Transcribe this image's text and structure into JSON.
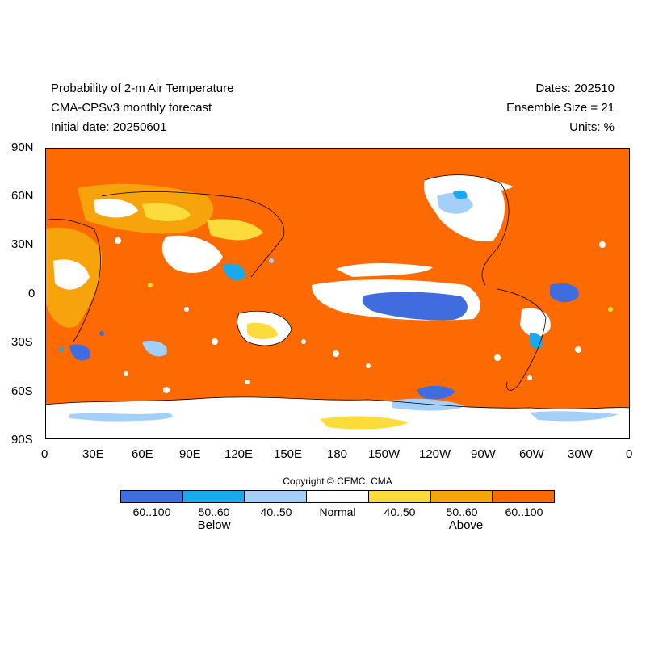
{
  "header": {
    "title": "Probability of 2-m Air Temperature",
    "subtitle": "CMA-CPSv3 monthly forecast",
    "initial_date": "Initial date: 20250601",
    "dates": "Dates: 202510",
    "ensemble": "Ensemble Size = 21",
    "units": "Units: %"
  },
  "axes": {
    "lat_ticks": [
      "90N",
      "60N",
      "30N",
      "0",
      "30S",
      "60S",
      "90S"
    ],
    "lon_ticks": [
      "0",
      "30E",
      "60E",
      "90E",
      "120E",
      "150E",
      "180",
      "150W",
      "120W",
      "90W",
      "60W",
      "30W",
      "0"
    ]
  },
  "copyright": "Copyright © CEMC, CMA",
  "legend": {
    "segments": [
      {
        "label": "60..100",
        "color": "#3f6ddf"
      },
      {
        "label": "50..60",
        "color": "#17aaee"
      },
      {
        "label": "40..50",
        "color": "#a4cff9"
      },
      {
        "label": "Normal",
        "color": "#ffffff"
      },
      {
        "label": "40..50",
        "color": "#fbdc3a"
      },
      {
        "label": "50..60",
        "color": "#f6a30c"
      },
      {
        "label": "60..100",
        "color": "#fd6a02"
      }
    ],
    "below_label": "Below",
    "above_label": "Above"
  }
}
